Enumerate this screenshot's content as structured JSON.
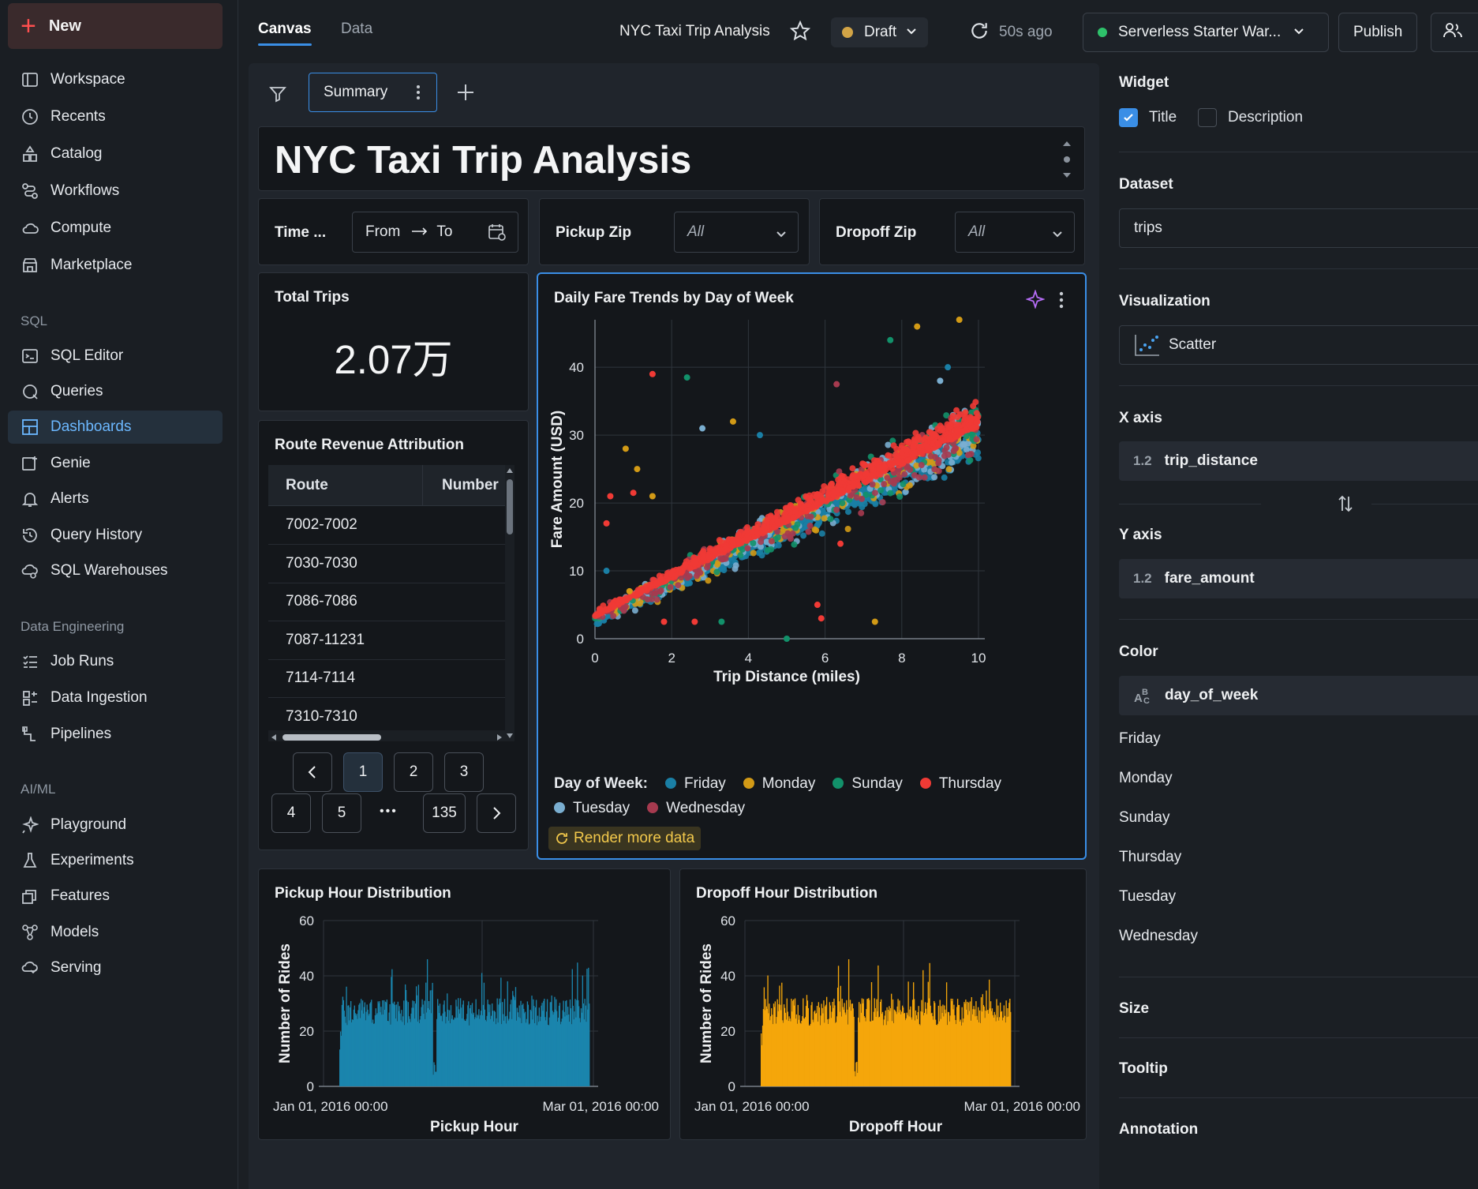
{
  "sidebar": {
    "new_label": "New",
    "items": [
      {
        "label": "Workspace",
        "name": "workspace"
      },
      {
        "label": "Recents",
        "name": "recents"
      },
      {
        "label": "Catalog",
        "name": "catalog"
      },
      {
        "label": "Workflows",
        "name": "workflows"
      },
      {
        "label": "Compute",
        "name": "compute"
      },
      {
        "label": "Marketplace",
        "name": "marketplace"
      }
    ],
    "sql_section": "SQL",
    "sql_items": [
      {
        "label": "SQL Editor"
      },
      {
        "label": "Queries"
      },
      {
        "label": "Dashboards",
        "active": true
      },
      {
        "label": "Genie"
      },
      {
        "label": "Alerts"
      },
      {
        "label": "Query History"
      },
      {
        "label": "SQL Warehouses"
      }
    ],
    "de_section": "Data Engineering",
    "de_items": [
      {
        "label": "Job Runs"
      },
      {
        "label": "Data Ingestion"
      },
      {
        "label": "Pipelines"
      }
    ],
    "ml_section": "AI/ML",
    "ml_items": [
      {
        "label": "Playground"
      },
      {
        "label": "Experiments"
      },
      {
        "label": "Features"
      },
      {
        "label": "Models"
      },
      {
        "label": "Serving"
      }
    ]
  },
  "topbar": {
    "tab_canvas": "Canvas",
    "tab_data": "Data",
    "title": "NYC Taxi Trip Analysis",
    "status": "Draft",
    "refresh_text": "50s ago",
    "warehouse": "Serverless Starter War...",
    "publish": "Publish"
  },
  "page_tabs": {
    "active": "Summary"
  },
  "dashboard": {
    "heading": "NYC Taxi Trip Analysis",
    "filters": {
      "time_label": "Time ...",
      "from": "From",
      "to": "To",
      "pickup_label": "Pickup Zip",
      "pickup_value": "All",
      "dropoff_label": "Dropoff Zip",
      "dropoff_value": "All"
    },
    "total_trips": {
      "title": "Total Trips",
      "value": "2.07万"
    },
    "route_table": {
      "title": "Route Revenue Attribution",
      "columns": [
        "Route",
        "Number"
      ],
      "rows": [
        "7002-7002",
        "7030-7030",
        "7086-7086",
        "7087-11231",
        "7114-7114",
        "7310-7310"
      ],
      "pages": [
        "1",
        "2",
        "3",
        "4",
        "5",
        "135"
      ],
      "ellipsis": "•••"
    },
    "render_more": "Render more data"
  },
  "chart_data": [
    {
      "type": "scatter",
      "title": "Daily Fare Trends by Day of Week",
      "xlabel": "Trip Distance (miles)",
      "ylabel": "Fare Amount (USD)",
      "xlim": [
        0,
        10
      ],
      "ylim": [
        0,
        47
      ],
      "xticks": [
        0,
        2,
        4,
        6,
        8,
        10
      ],
      "yticks": [
        0,
        10,
        20,
        30,
        40
      ],
      "legend_title": "Day of Week:",
      "legend_position": "bottom",
      "series": [
        {
          "name": "Friday",
          "color": "#1a7fa5"
        },
        {
          "name": "Monday",
          "color": "#d29a16"
        },
        {
          "name": "Sunday",
          "color": "#12916a"
        },
        {
          "name": "Thursday",
          "color": "#f03a35"
        },
        {
          "name": "Tuesday",
          "color": "#7aaed0"
        },
        {
          "name": "Wednesday",
          "color": "#a63a4f"
        }
      ],
      "trend": {
        "intercept": 3,
        "slope": 2.8
      },
      "outliers": [
        {
          "x": 1.5,
          "y": 39,
          "s": 3
        },
        {
          "x": 2.4,
          "y": 38.5,
          "s": 2
        },
        {
          "x": 7.7,
          "y": 44,
          "s": 2
        },
        {
          "x": 8.4,
          "y": 46,
          "s": 1
        },
        {
          "x": 9.5,
          "y": 47,
          "s": 1
        },
        {
          "x": 6.3,
          "y": 37.5,
          "s": 5
        },
        {
          "x": 0.8,
          "y": 28,
          "s": 1
        },
        {
          "x": 1.1,
          "y": 25,
          "s": 1
        },
        {
          "x": 0.4,
          "y": 21,
          "s": 3
        },
        {
          "x": 0.3,
          "y": 17,
          "s": 3
        },
        {
          "x": 0.9,
          "y": 7,
          "s": 1
        },
        {
          "x": 1.8,
          "y": 2.5,
          "s": 3
        },
        {
          "x": 2.6,
          "y": 2.5,
          "s": 3
        },
        {
          "x": 3.3,
          "y": 2.5,
          "s": 2
        },
        {
          "x": 5.0,
          "y": 0,
          "s": 2
        },
        {
          "x": 5.9,
          "y": 3,
          "s": 3
        },
        {
          "x": 7.3,
          "y": 2.5,
          "s": 1
        },
        {
          "x": 2.8,
          "y": 31,
          "s": 4
        },
        {
          "x": 1.5,
          "y": 21,
          "s": 1
        },
        {
          "x": 0.3,
          "y": 10,
          "s": 0
        },
        {
          "x": 4.3,
          "y": 30,
          "s": 0
        },
        {
          "x": 3.6,
          "y": 32,
          "s": 1
        },
        {
          "x": 6.4,
          "y": 14,
          "s": 3
        },
        {
          "x": 5.8,
          "y": 5,
          "s": 3
        },
        {
          "x": 9.2,
          "y": 40,
          "s": 0
        },
        {
          "x": 9.0,
          "y": 38,
          "s": 4
        },
        {
          "x": 1.0,
          "y": 21.5,
          "s": 3
        }
      ]
    },
    {
      "type": "bar",
      "title": "Pickup Hour Distribution",
      "xlabel": "Pickup Hour",
      "ylabel": "Number of Rides",
      "ylim": [
        0,
        60
      ],
      "yticks": [
        0,
        20,
        40,
        60
      ],
      "x_tick_labels": [
        "Jan 01, 2016 00:00",
        "Mar 01, 2016 00:00"
      ],
      "color": "#1a85ad"
    },
    {
      "type": "bar",
      "title": "Dropoff Hour Distribution",
      "xlabel": "Dropoff Hour",
      "ylabel": "Number of Rides",
      "ylim": [
        0,
        60
      ],
      "yticks": [
        0,
        20,
        40,
        60
      ],
      "x_tick_labels": [
        "Jan 01, 2016 00:00",
        "Mar 01, 2016 00:00"
      ],
      "color": "#f5a60a"
    }
  ],
  "panel": {
    "widget_label": "Widget",
    "title_check": "Title",
    "description_check": "Description",
    "dataset_label": "Dataset",
    "dataset_value": "trips",
    "viz_label": "Visualization",
    "viz_value": "Scatter",
    "x_label": "X axis",
    "x_field": "trip_distance",
    "x_tag": "1.2",
    "y_label": "Y axis",
    "y_field": "fare_amount",
    "y_tag": "1.2",
    "color_label": "Color",
    "color_field": "day_of_week",
    "color_values": [
      "Friday",
      "Monday",
      "Sunday",
      "Thursday",
      "Tuesday",
      "Wednesday"
    ],
    "size_label": "Size",
    "tooltip_label": "Tooltip",
    "annotation_label": "Annotation"
  }
}
